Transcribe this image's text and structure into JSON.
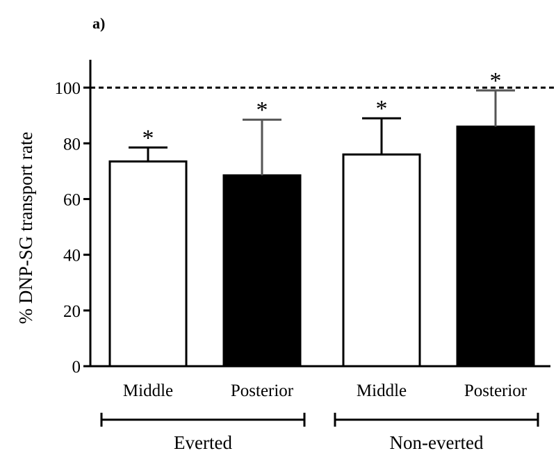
{
  "panel_label": "a)",
  "chart_data": {
    "type": "bar",
    "title": "",
    "xlabel": "",
    "ylabel": "% DNP-SG transport rate",
    "ylim": [
      0,
      110
    ],
    "yticks": [
      0,
      20,
      40,
      60,
      80,
      100
    ],
    "reference_line": {
      "value": 100,
      "style": "dashed"
    },
    "categories": [
      "Middle",
      "Posterior",
      "Middle",
      "Posterior"
    ],
    "values": [
      73.5,
      68.5,
      76,
      86
    ],
    "errors": [
      5,
      20,
      13,
      13
    ],
    "fills": [
      "#ffffff",
      "#000000",
      "#ffffff",
      "#000000"
    ],
    "significance": [
      "*",
      "*",
      "*",
      "*"
    ],
    "groups": [
      {
        "label": "Everted",
        "bars": [
          0,
          1
        ]
      },
      {
        "label": "Non-everted",
        "bars": [
          2,
          3
        ]
      }
    ]
  }
}
